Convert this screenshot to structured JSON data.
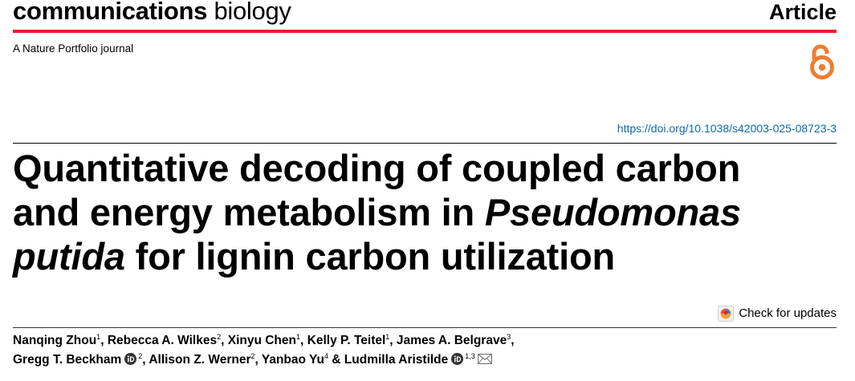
{
  "header": {
    "journal_bold": "communications",
    "journal_light": "biology",
    "article_type": "Article",
    "tagline": "A Nature Portfolio journal",
    "open_access_icon": "open-access-lock-icon",
    "brand_color": "#e3202d",
    "oa_color": "#f07d30"
  },
  "doi": "https://doi.org/10.1038/s42003-025-08723-3",
  "title": {
    "line1": "Quantitative decoding of coupled carbon",
    "line2a": "and energy metabolism in ",
    "line2b": "Pseudomonas",
    "line3a": "putida",
    "line3b": " for lignin carbon utilization"
  },
  "updates": {
    "label": "Check for updates",
    "icon": "check-for-updates-icon"
  },
  "authors": [
    {
      "name": "Nanqing Zhou",
      "aff": "1"
    },
    {
      "name": "Rebecca A. Wilkes",
      "aff": "2"
    },
    {
      "name": "Xinyu Chen",
      "aff": "1"
    },
    {
      "name": "Kelly P. Teitel",
      "aff": "1"
    },
    {
      "name": "James A. Belgrave",
      "aff": "3"
    },
    {
      "name": "Gregg T. Beckham",
      "aff": "2",
      "orcid": true
    },
    {
      "name": "Allison Z. Werner",
      "aff": "2"
    },
    {
      "name": "Yanbao Yu",
      "aff": "4"
    },
    {
      "name": "Ludmilla Aristilde",
      "aff": "1,3",
      "orcid": true,
      "corresponding": true
    }
  ],
  "separators": {
    "comma": ", ",
    "ampersand": " & "
  }
}
